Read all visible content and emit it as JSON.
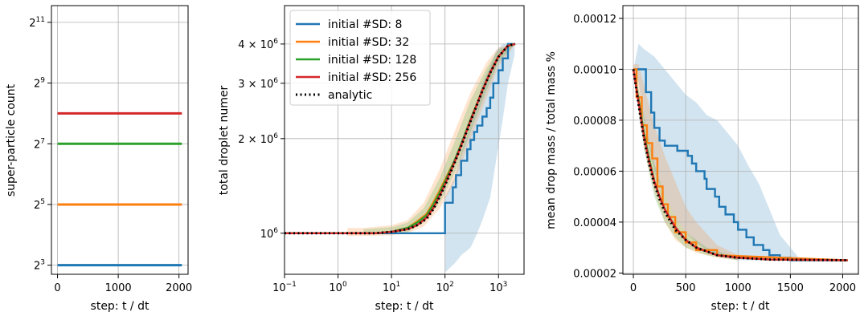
{
  "colors": {
    "sd8": "#1f77b4",
    "sd32": "#ff7f0e",
    "sd128": "#2ca02c",
    "sd256": "#d62728",
    "analytic": "#000000",
    "grid": "#b0b0b0"
  },
  "chart_data": [
    {
      "type": "line",
      "xlabel": "step: t / dt",
      "ylabel": "super-particle count",
      "xscale": "linear",
      "yscale": "log2",
      "xlim": [
        -100,
        2150
      ],
      "ylim": [
        6.5,
        3000
      ],
      "grid": true,
      "xticks": [
        {
          "v": 0,
          "t": "0"
        },
        {
          "v": 1000,
          "t": "1000"
        },
        {
          "v": 2000,
          "t": "2000"
        }
      ],
      "yticks": [
        {
          "v": 8,
          "b": "2",
          "e": "3"
        },
        {
          "v": 32,
          "b": "2",
          "e": "5"
        },
        {
          "v": 128,
          "b": "2",
          "e": "7"
        },
        {
          "v": 512,
          "b": "2",
          "e": "9"
        },
        {
          "v": 2048,
          "b": "2",
          "e": "11"
        }
      ],
      "series": [
        {
          "key": "sd8",
          "x": [
            0,
            2048
          ],
          "y": [
            8,
            8
          ]
        },
        {
          "key": "sd32",
          "x": [
            0,
            2048
          ],
          "y": [
            32,
            32
          ]
        },
        {
          "key": "sd128",
          "x": [
            0,
            2048
          ],
          "y": [
            128,
            128
          ]
        },
        {
          "key": "sd256",
          "x": [
            0,
            2048
          ],
          "y": [
            256,
            256
          ]
        }
      ]
    },
    {
      "type": "line",
      "xlabel": "step: t / dt",
      "ylabel": "total droplet numer",
      "xscale": "log",
      "yscale": "log",
      "xlim": [
        0.1,
        3000
      ],
      "ylim": [
        740000,
        5300000
      ],
      "grid": true,
      "legend": "upper-left",
      "xticks": [
        {
          "v": 0.1,
          "b": "10",
          "e": "−1"
        },
        {
          "v": 1,
          "b": "10",
          "e": "0"
        },
        {
          "v": 10,
          "b": "10",
          "e": "1"
        },
        {
          "v": 100,
          "b": "10",
          "e": "2"
        },
        {
          "v": 1000,
          "b": "10",
          "e": "3"
        }
      ],
      "yticks": [
        {
          "v": 1000000,
          "b": "10",
          "e": "6"
        },
        {
          "v": 2000000,
          "m": "2 × ",
          "b": "10",
          "e": "6"
        },
        {
          "v": 3000000,
          "m": "3 × ",
          "b": "10",
          "e": "6"
        },
        {
          "v": 4000000,
          "m": "4 × ",
          "b": "10",
          "e": "6"
        }
      ],
      "legend_entries": [
        {
          "key": "sd8",
          "label": "initial #SD: 8"
        },
        {
          "key": "sd32",
          "label": "initial #SD: 32"
        },
        {
          "key": "sd128",
          "label": "initial #SD: 128"
        },
        {
          "key": "sd256",
          "label": "initial #SD: 256"
        },
        {
          "key": "analytic",
          "label": "analytic",
          "dash": true
        }
      ],
      "bands": [
        {
          "key": "sd8",
          "x": [
            100,
            150,
            200,
            300,
            400,
            500,
            700,
            900,
            1200,
            1500,
            2000
          ],
          "lo": [
            750000,
            800000,
            850000,
            900000,
            1000000,
            1100000,
            1300000,
            1700000,
            2300000,
            3000000,
            3700000
          ],
          "hi": [
            1300000,
            1500000,
            1800000,
            2200000,
            2600000,
            3000000,
            3400000,
            3800000,
            4000000,
            4000000,
            4000000
          ]
        },
        {
          "key": "sd32",
          "x": [
            1.5,
            3,
            10,
            20,
            40,
            80,
            150,
            300,
            600,
            1000,
            2000
          ],
          "lo": [
            980000,
            980000,
            985000,
            1000000,
            1050000,
            1200000,
            1450000,
            2000000,
            2700000,
            3400000,
            3950000
          ],
          "hi": [
            1040000,
            1040000,
            1060000,
            1100000,
            1250000,
            1600000,
            2100000,
            2800000,
            3500000,
            3900000,
            4000000
          ]
        },
        {
          "key": "sd128",
          "x": [
            3,
            10,
            20,
            40,
            80,
            150,
            300,
            600,
            1000,
            2000
          ],
          "lo": [
            990000,
            995000,
            1010000,
            1080000,
            1250000,
            1550000,
            2100000,
            2850000,
            3500000,
            3980000
          ],
          "hi": [
            1030000,
            1045000,
            1080000,
            1200000,
            1500000,
            1950000,
            2650000,
            3350000,
            3850000,
            4000000
          ]
        }
      ],
      "series": [
        {
          "key": "sd8",
          "x": [
            0.1,
            100,
            100,
            120,
            120,
            140,
            140,
            160,
            160,
            200,
            200,
            260,
            260,
            300,
            300,
            350,
            350,
            400,
            400,
            500,
            500,
            600,
            600,
            700,
            700,
            800,
            800,
            1000,
            1000,
            1200,
            1200,
            1500,
            1500,
            2048
          ],
          "y": [
            1000000,
            1000000,
            1250000,
            1250000,
            1250000,
            1250000,
            1400000,
            1400000,
            1530000,
            1530000,
            1700000,
            1700000,
            1850000,
            1850000,
            1980000,
            1980000,
            2100000,
            2100000,
            2200000,
            2200000,
            2350000,
            2350000,
            2500000,
            2500000,
            2700000,
            2700000,
            3000000,
            3000000,
            3300000,
            3300000,
            3600000,
            3600000,
            4000000,
            4000000
          ]
        },
        {
          "key": "sd32",
          "x": [
            0.1,
            2,
            5,
            10,
            20,
            30,
            45,
            60,
            80,
            100,
            150,
            200,
            300,
            500,
            700,
            1000,
            1500,
            2048
          ],
          "y": [
            1000000,
            1000000,
            1000000,
            1010000,
            1040000,
            1090000,
            1150000,
            1250000,
            1370000,
            1480000,
            1700000,
            1900000,
            2300000,
            2850000,
            3250000,
            3650000,
            3950000,
            4000000
          ]
        },
        {
          "key": "sd128",
          "x": [
            0.1,
            5,
            10,
            20,
            30,
            45,
            60,
            80,
            100,
            150,
            200,
            300,
            500,
            700,
            1000,
            1500,
            2048
          ],
          "y": [
            1000000,
            1000000,
            1010000,
            1040000,
            1080000,
            1140000,
            1230000,
            1350000,
            1460000,
            1700000,
            1920000,
            2300000,
            2850000,
            3250000,
            3650000,
            3950000,
            4000000
          ]
        },
        {
          "key": "sd256",
          "x": [
            0.1,
            5,
            10,
            20,
            30,
            45,
            60,
            80,
            100,
            150,
            200,
            300,
            500,
            700,
            1000,
            1500,
            2048
          ],
          "y": [
            1000000,
            1000000,
            1010000,
            1030000,
            1060000,
            1120000,
            1200000,
            1320000,
            1430000,
            1680000,
            1900000,
            2280000,
            2850000,
            3250000,
            3650000,
            3950000,
            4000000
          ]
        },
        {
          "key": "analytic",
          "dash": true,
          "x": [
            0.1,
            5,
            10,
            20,
            30,
            45,
            60,
            80,
            100,
            150,
            200,
            300,
            500,
            700,
            1000,
            1500,
            2048
          ],
          "y": [
            1000000,
            1000000,
            1010000,
            1030000,
            1060000,
            1110000,
            1190000,
            1310000,
            1420000,
            1670000,
            1890000,
            2270000,
            2840000,
            3240000,
            3640000,
            3950000,
            4000000
          ]
        }
      ]
    },
    {
      "type": "line",
      "xlabel": "step: t / dt",
      "ylabel": "mean drop mass / total mass %",
      "xscale": "linear",
      "yscale": "linear",
      "xlim": [
        -100,
        2150
      ],
      "ylim": [
        1.95e-05,
        0.000125
      ],
      "grid": true,
      "xticks": [
        {
          "v": 0,
          "t": "0"
        },
        {
          "v": 500,
          "t": "500"
        },
        {
          "v": 1000,
          "t": "1000"
        },
        {
          "v": 1500,
          "t": "1500"
        },
        {
          "v": 2000,
          "t": "2000"
        }
      ],
      "yticks": [
        {
          "v": 2e-05,
          "t": "0.00002"
        },
        {
          "v": 4e-05,
          "t": "0.00004"
        },
        {
          "v": 6e-05,
          "t": "0.00006"
        },
        {
          "v": 8e-05,
          "t": "0.00008"
        },
        {
          "v": 0.0001,
          "t": "0.00010"
        },
        {
          "v": 0.00012,
          "t": "0.00012"
        }
      ],
      "bands": [
        {
          "key": "sd8",
          "x": [
            0,
            50,
            100,
            200,
            300,
            400,
            500,
            600,
            700,
            800,
            900,
            1000,
            1100,
            1200,
            1300,
            1400,
            1500,
            1600
          ],
          "lo": [
            0.0001,
            9.5e-05,
            8e-05,
            6e-05,
            5e-05,
            4.2e-05,
            3.6e-05,
            3.2e-05,
            2.9e-05,
            2.7e-05,
            2.6e-05,
            2.5e-05,
            2.5e-05,
            2.5e-05,
            2.5e-05,
            2.5e-05,
            2.5e-05,
            2.5e-05
          ],
          "hi": [
            0.0001,
            0.00011,
            0.000108,
            0.000105,
            0.0001,
            9.5e-05,
            9e-05,
            8.7e-05,
            8.2e-05,
            8e-05,
            7.5e-05,
            7e-05,
            6.2e-05,
            5.5e-05,
            4.5e-05,
            3.5e-05,
            3e-05,
            2.5e-05
          ]
        },
        {
          "key": "sd32",
          "x": [
            0,
            50,
            100,
            150,
            200,
            300,
            400,
            500,
            600,
            800,
            1000
          ],
          "lo": [
            0.0001,
            8.5e-05,
            7e-05,
            6e-05,
            5.2e-05,
            4e-05,
            3.3e-05,
            3e-05,
            2.8e-05,
            2.6e-05,
            2.5e-05
          ],
          "hi": [
            0.000102,
            0.000102,
            9.4e-05,
            8.6e-05,
            7.8e-05,
            6.6e-05,
            5.6e-05,
            4.6e-05,
            4e-05,
            3.1e-05,
            2.7e-05
          ]
        },
        {
          "key": "sd128",
          "x": [
            0,
            50,
            100,
            200,
            300,
            400,
            500,
            700,
            1000
          ],
          "lo": [
            0.0001,
            8.3e-05,
            6.9e-05,
            5e-05,
            4e-05,
            3.4e-05,
            3e-05,
            2.7e-05,
            2.5e-05
          ],
          "hi": [
            0.0001,
            9.2e-05,
            8.2e-05,
            6.3e-05,
            5e-05,
            4.2e-05,
            3.6e-05,
            3e-05,
            2.6e-05
          ]
        }
      ],
      "series": [
        {
          "key": "sd8",
          "x": [
            0,
            30,
            30,
            120,
            120,
            170,
            170,
            200,
            200,
            250,
            250,
            300,
            300,
            420,
            420,
            520,
            520,
            560,
            560,
            600,
            600,
            680,
            680,
            700,
            700,
            780,
            780,
            820,
            820,
            880,
            880,
            960,
            960,
            1000,
            1000,
            1080,
            1080,
            1150,
            1150,
            1240,
            1240,
            1300,
            1300,
            1400,
            1400,
            1500,
            1500,
            2048
          ],
          "y": [
            0.0001,
            0.0001,
            0.0001,
            0.0001,
            9.1e-05,
            9.1e-05,
            8.3e-05,
            8.3e-05,
            7.7e-05,
            7.7e-05,
            7.2e-05,
            7.2e-05,
            7e-05,
            7e-05,
            6.8e-05,
            6.8e-05,
            6.6e-05,
            6.6e-05,
            6.3e-05,
            6.3e-05,
            6e-05,
            6e-05,
            5.7e-05,
            5.7e-05,
            5.3e-05,
            5.3e-05,
            5e-05,
            5e-05,
            4.6e-05,
            4.6e-05,
            4.3e-05,
            4.3e-05,
            4e-05,
            4e-05,
            3.7e-05,
            3.7e-05,
            3.4e-05,
            3.4e-05,
            3.1e-05,
            3.1e-05,
            2.9e-05,
            2.9e-05,
            2.7e-05,
            2.7e-05,
            2.6e-05,
            2.6e-05,
            2.5e-05,
            2.5e-05
          ]
        },
        {
          "key": "sd32",
          "x": [
            0,
            30,
            30,
            80,
            80,
            130,
            130,
            180,
            180,
            230,
            230,
            280,
            280,
            330,
            330,
            400,
            400,
            500,
            500,
            600,
            600,
            800,
            800,
            2048
          ],
          "y": [
            0.0001,
            0.0001,
            8.9e-05,
            8.9e-05,
            7.8e-05,
            7.8e-05,
            7.1e-05,
            7.1e-05,
            6.5e-05,
            6.5e-05,
            5.4e-05,
            5.4e-05,
            4.7e-05,
            4.7e-05,
            4.2e-05,
            4.2e-05,
            3.6e-05,
            3.6e-05,
            3.2e-05,
            3.2e-05,
            2.9e-05,
            2.9e-05,
            2.7e-05,
            2.5e-05
          ]
        },
        {
          "key": "sd128",
          "x": [
            0,
            50,
            100,
            150,
            200,
            250,
            300,
            400,
            500,
            600,
            800,
            1000,
            1300,
            2048
          ],
          "y": [
            0.0001,
            8.8e-05,
            7.5e-05,
            6.5e-05,
            5.6e-05,
            5e-05,
            4.5e-05,
            3.8e-05,
            3.3e-05,
            3e-05,
            2.7e-05,
            2.6e-05,
            2.53e-05,
            2.5e-05
          ]
        },
        {
          "key": "sd256",
          "x": [
            0,
            50,
            100,
            150,
            200,
            250,
            300,
            400,
            500,
            600,
            800,
            1000,
            1300,
            2048
          ],
          "y": [
            0.0001,
            8.7e-05,
            7.4e-05,
            6.4e-05,
            5.6e-05,
            5e-05,
            4.5e-05,
            3.8e-05,
            3.3e-05,
            3e-05,
            2.7e-05,
            2.6e-05,
            2.53e-05,
            2.5e-05
          ]
        },
        {
          "key": "analytic",
          "dash": true,
          "x": [
            0,
            50,
            100,
            150,
            200,
            250,
            300,
            400,
            500,
            600,
            800,
            1000,
            1300,
            2048
          ],
          "y": [
            0.0001,
            8.6e-05,
            7.3e-05,
            6.3e-05,
            5.5e-05,
            4.9e-05,
            4.4e-05,
            3.7e-05,
            3.3e-05,
            3e-05,
            2.7e-05,
            2.6e-05,
            2.53e-05,
            2.5e-05
          ]
        }
      ]
    }
  ]
}
